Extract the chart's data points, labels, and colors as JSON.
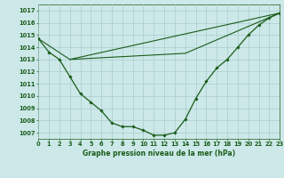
{
  "background_color": "#cce8e8",
  "grid_color": "#aacccc",
  "line_color": "#1a5c1a",
  "marker_color": "#1a5c1a",
  "title": "Graphe pression niveau de la mer (hPa)",
  "x_min": 0,
  "x_max": 23,
  "y_min": 1006.5,
  "y_max": 1017.5,
  "yticks": [
    1007,
    1008,
    1009,
    1010,
    1011,
    1012,
    1013,
    1014,
    1015,
    1016,
    1017
  ],
  "xticks": [
    0,
    1,
    2,
    3,
    4,
    5,
    6,
    7,
    8,
    9,
    10,
    11,
    12,
    13,
    14,
    15,
    16,
    17,
    18,
    19,
    20,
    21,
    22,
    23
  ],
  "series1_x": [
    0,
    1,
    2,
    3,
    4,
    5,
    6,
    7,
    8,
    9,
    10,
    11,
    12,
    13,
    14,
    15,
    16,
    17,
    18,
    19,
    20,
    21,
    22,
    23
  ],
  "series1_y": [
    1014.7,
    1013.6,
    1013.0,
    1011.6,
    1010.2,
    1009.5,
    1008.8,
    1007.8,
    1007.5,
    1007.5,
    1007.2,
    1006.8,
    1006.8,
    1007.0,
    1008.1,
    1009.8,
    1011.2,
    1012.3,
    1013.0,
    1014.0,
    1015.0,
    1015.8,
    1016.4,
    1016.8
  ],
  "series2_x": [
    0,
    3,
    23
  ],
  "series2_y": [
    1014.7,
    1013.0,
    1016.8
  ],
  "series3_x": [
    3,
    14,
    23
  ],
  "series3_y": [
    1013.0,
    1013.5,
    1016.8
  ],
  "title_fontsize": 5.5,
  "tick_fontsize": 4.8
}
